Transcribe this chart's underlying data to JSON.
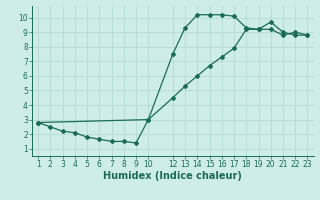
{
  "line1_x": [
    1,
    2,
    3,
    4,
    5,
    6,
    7,
    8,
    9,
    10,
    12,
    13,
    14,
    15,
    16,
    17,
    18,
    19,
    20,
    21,
    22,
    23
  ],
  "line1_y": [
    2.8,
    2.5,
    2.2,
    2.1,
    1.8,
    1.65,
    1.5,
    1.5,
    1.4,
    3.0,
    7.5,
    9.3,
    10.2,
    10.2,
    10.2,
    10.1,
    9.3,
    9.2,
    9.7,
    9.0,
    8.8,
    8.8
  ],
  "line2_x": [
    1,
    10,
    12,
    13,
    14,
    15,
    16,
    17,
    18,
    19,
    20,
    21,
    22,
    23
  ],
  "line2_y": [
    2.8,
    3.0,
    4.5,
    5.3,
    6.0,
    6.7,
    7.3,
    7.9,
    9.2,
    9.2,
    9.2,
    8.8,
    9.0,
    8.8
  ],
  "line_color": "#1a6b5a",
  "bg_color": "#ceecea",
  "grid_color": "#b8dcd8",
  "xlabel": "Humidex (Indice chaleur)",
  "xlim": [
    0.5,
    23.5
  ],
  "ylim": [
    0.5,
    10.8
  ],
  "xticks": [
    1,
    2,
    3,
    4,
    5,
    6,
    7,
    8,
    9,
    10,
    12,
    13,
    14,
    15,
    16,
    17,
    18,
    19,
    20,
    21,
    22,
    23
  ],
  "yticks": [
    1,
    2,
    3,
    4,
    5,
    6,
    7,
    8,
    9,
    10
  ],
  "label_fontsize": 7,
  "tick_fontsize": 5.5
}
